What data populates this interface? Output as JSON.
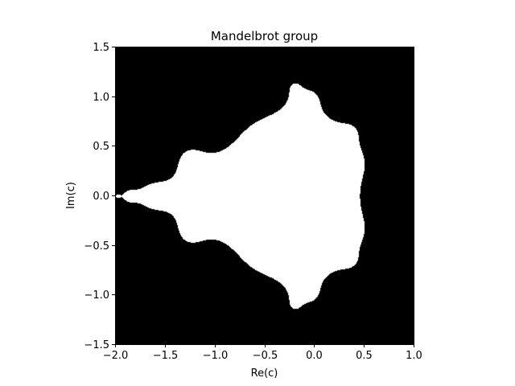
{
  "chart_data": {
    "type": "heatmap",
    "title": "Mandelbrot group",
    "xlabel": "Re(c)",
    "ylabel": "Im(c)",
    "xlim": [
      -2.0,
      1.0
    ],
    "ylim": [
      -1.5,
      1.5
    ],
    "xticks": [
      -2.0,
      -1.5,
      -1.0,
      -0.5,
      0.0,
      0.5,
      1.0
    ],
    "yticks": [
      -1.5,
      -1.0,
      -0.5,
      0.0,
      0.5,
      1.0,
      1.5
    ],
    "xtick_labels": [
      "−2.0",
      "−1.5",
      "−1.0",
      "−0.5",
      "0.0",
      "0.5",
      "1.0"
    ],
    "ytick_labels": [
      "−1.5",
      "−1.0",
      "−0.5",
      "0.0",
      "0.5",
      "1.0",
      "1.5"
    ],
    "colormap": {
      "in_set": "#ffffff",
      "escaped": "#000000"
    },
    "escape_iterations": 5,
    "grid": false
  }
}
